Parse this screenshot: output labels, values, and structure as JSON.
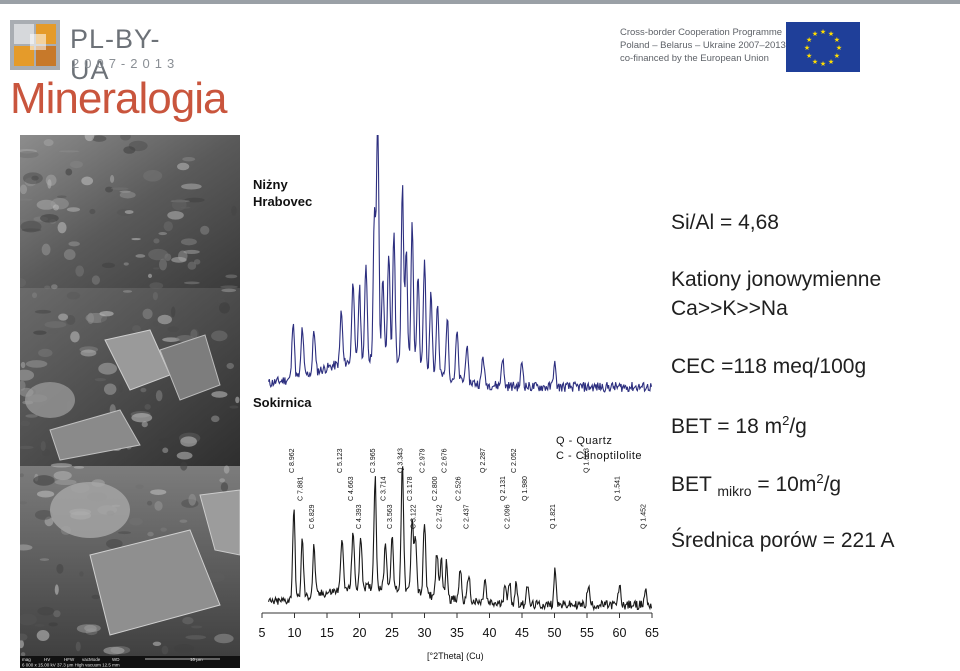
{
  "header": {
    "logo_text": "PL-BY-UA",
    "logo_years": "2007-2013",
    "programme_lines": [
      "Cross-border Cooperation Programme",
      "Poland – Belarus – Ukraine 2007–2013",
      "co-financed by the European Union"
    ],
    "eu_flag_icon": "eu-flag-icon"
  },
  "title": "Mineralogia",
  "photo": {
    "scalebar": {
      "labels_top": [
        "mag",
        "HV",
        "HFW",
        "vacMode",
        "WD",
        "10 μm"
      ],
      "labels_bottom": "6 000 x  15.00 kV  37.3 μm  High vacuum  12.5 mm"
    }
  },
  "xrd": {
    "sample1_line1": "Niżny",
    "sample1_line2": "Hrabovec",
    "sample2": "Sokirnica",
    "legend": [
      "Q - Quartz",
      "C - Clinoptilolite"
    ],
    "axis_title": "[°2Theta] (Cu)",
    "x_ticks": [
      "5",
      "10",
      "15",
      "20",
      "25",
      "30",
      "35",
      "40",
      "45",
      "50",
      "55",
      "60",
      "65"
    ],
    "color_top": "#2d2f7f",
    "color_bottom": "#1a1a1a",
    "peak_labels": [
      {
        "text": "C 8.962",
        "x": 9.9
      },
      {
        "text": "C 7.881",
        "x": 11.2
      },
      {
        "text": "C 6.829",
        "x": 13.0
      },
      {
        "text": "C 5.123",
        "x": 17.3
      },
      {
        "text": "C 4.663",
        "x": 19.0
      },
      {
        "text": "C 4.393",
        "x": 20.2
      },
      {
        "text": "C 3.965",
        "x": 22.4
      },
      {
        "text": "C 3.714",
        "x": 24.0
      },
      {
        "text": "C 3.563",
        "x": 25.0
      },
      {
        "text": "Q 3.343",
        "x": 26.6
      },
      {
        "text": "C 3.178",
        "x": 28.1
      },
      {
        "text": "C 3.122",
        "x": 28.6
      },
      {
        "text": "C 2.979",
        "x": 30.0
      },
      {
        "text": "C 2.800",
        "x": 31.9
      },
      {
        "text": "C 2.742",
        "x": 32.6
      },
      {
        "text": "C 2.676",
        "x": 33.4
      },
      {
        "text": "C 2.526",
        "x": 35.5
      },
      {
        "text": "C 2.437",
        "x": 36.8
      },
      {
        "text": "Q 2.287",
        "x": 39.3
      },
      {
        "text": "Q 2.131",
        "x": 42.4
      },
      {
        "text": "C 2.096",
        "x": 43.1
      },
      {
        "text": "C 2.052",
        "x": 44.1
      },
      {
        "text": "Q 1.980",
        "x": 45.8
      },
      {
        "text": "Q 1.821",
        "x": 50.1
      },
      {
        "text": "Q 1.663",
        "x": 55.2
      },
      {
        "text": "Q 1.541",
        "x": 60.0
      },
      {
        "text": "Q 1.452",
        "x": 64.0
      }
    ]
  },
  "properties": {
    "si_al": "Si/Al = 4,68",
    "cations_title": "Kationy jonowymienne",
    "cations_value": "Ca>>K>>Na",
    "cec": "CEC =118 meq/100g",
    "bet_prefix": "BET  = 18 m",
    "bet_sup": "2",
    "bet_suffix": "/g",
    "betm_prefix": "BET",
    "betm_sub": "mikro",
    "betm_mid": " = 10m",
    "betm_sup": "2",
    "betm_suffix": "/g",
    "pores": "Średnica porów = 221 A"
  }
}
